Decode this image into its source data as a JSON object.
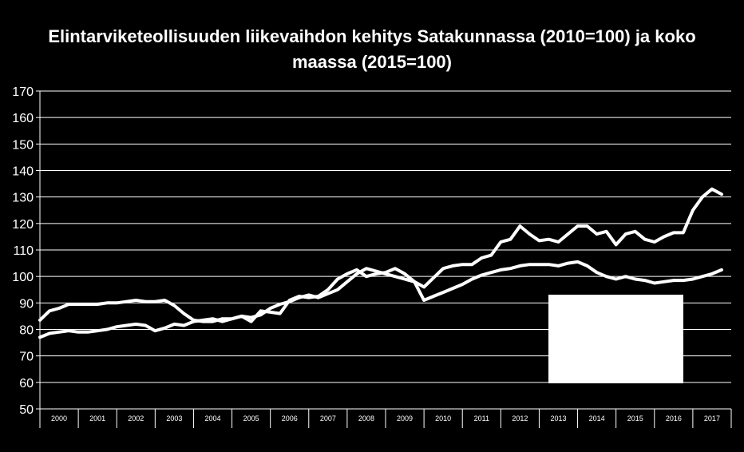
{
  "chart_data": {
    "type": "line",
    "title_lines": [
      "Elintarviketeollisuuden liikevaihdon kehitys Satakunnassa (2010=100) ja koko",
      "maassa (2015=100)"
    ],
    "xlabel": "",
    "ylabel": "",
    "ylim": [
      50,
      170
    ],
    "yticks": [
      50,
      60,
      70,
      80,
      90,
      100,
      110,
      120,
      130,
      140,
      150,
      160,
      170
    ],
    "xlim": [
      2000,
      2018
    ],
    "x_tick_labels": [
      "2000",
      "2001",
      "2002",
      "2003",
      "2004",
      "2005",
      "2006",
      "2007",
      "2008",
      "2009",
      "2010",
      "2011",
      "2012",
      "2013",
      "2014",
      "2015",
      "2016",
      "2017"
    ],
    "grid": "horizontal",
    "line_color": "#ffffff",
    "series": [
      {
        "x": [
          2000.0,
          2000.25,
          2000.5,
          2000.75,
          2001.0,
          2001.25,
          2001.5,
          2001.75,
          2002.0,
          2002.25,
          2002.5,
          2002.75,
          2003.0,
          2003.25,
          2003.5,
          2003.75,
          2004.0,
          2004.25,
          2004.5,
          2004.75,
          2005.0,
          2005.25,
          2005.5,
          2005.75,
          2006.0,
          2006.25,
          2006.5,
          2006.75,
          2007.0,
          2007.25,
          2007.5,
          2007.75,
          2008.0,
          2008.25,
          2008.5,
          2008.75,
          2009.0,
          2009.25,
          2009.5,
          2009.75,
          2010.0,
          2010.25,
          2010.5,
          2010.75,
          2011.0,
          2011.25,
          2011.5,
          2011.75,
          2012.0,
          2012.25,
          2012.5,
          2012.75,
          2013.0,
          2013.25,
          2013.5,
          2013.75,
          2014.0,
          2014.25,
          2014.5,
          2014.75,
          2015.0,
          2015.25,
          2015.5,
          2015.75,
          2016.0,
          2016.25,
          2016.5,
          2016.75,
          2017.0,
          2017.25,
          2017.5,
          2017.75
        ],
        "values": [
          77,
          78.5,
          79,
          79.5,
          79,
          79,
          79.5,
          80,
          81,
          81.5,
          82,
          81.5,
          79.5,
          80.5,
          82,
          81.5,
          83,
          83.5,
          84,
          83,
          84,
          85,
          84.5,
          85.5,
          88,
          89.5,
          90.5,
          92,
          93,
          92,
          93.5,
          95,
          98,
          101,
          103,
          102,
          101,
          100,
          99,
          98,
          91,
          92.5,
          94,
          95.5,
          97,
          99,
          100.5,
          101.5,
          102.5,
          103,
          104,
          104.5,
          104.5,
          104.5,
          104,
          105,
          105.5,
          104,
          101.5,
          100,
          99,
          100,
          99,
          98.5,
          97.5,
          98,
          98.5,
          98.5,
          99,
          100,
          101,
          102.5
        ]
      },
      {
        "x": [
          2000.0,
          2000.25,
          2000.5,
          2000.75,
          2001.0,
          2001.25,
          2001.5,
          2001.75,
          2002.0,
          2002.25,
          2002.5,
          2002.75,
          2003.0,
          2003.25,
          2003.5,
          2003.75,
          2004.0,
          2004.25,
          2004.5,
          2004.75,
          2005.0,
          2005.25,
          2005.5,
          2005.75,
          2006.0,
          2006.25,
          2006.5,
          2006.75,
          2007.0,
          2007.25,
          2007.5,
          2007.75,
          2008.0,
          2008.25,
          2008.5,
          2008.75,
          2009.0,
          2009.25,
          2009.5,
          2009.75,
          2010.0,
          2010.25,
          2010.5,
          2010.75,
          2011.0,
          2011.25,
          2011.5,
          2011.75,
          2012.0,
          2012.25,
          2012.5,
          2012.75,
          2013.0,
          2013.25,
          2013.5,
          2013.75,
          2014.0,
          2014.25,
          2014.5,
          2014.75,
          2015.0,
          2015.25,
          2015.5,
          2015.75,
          2016.0,
          2016.25,
          2016.5,
          2016.75,
          2017.0,
          2017.25,
          2017.5,
          2017.75
        ],
        "values": [
          83.5,
          87,
          88,
          89.5,
          89.5,
          89.5,
          89.5,
          90,
          90,
          90.5,
          91,
          90.5,
          90.5,
          91,
          89,
          86,
          83.5,
          83,
          83,
          84,
          84,
          85,
          83,
          87,
          86.5,
          86,
          91,
          92.5,
          92,
          92.5,
          95,
          99,
          101,
          102.5,
          100,
          101,
          101.5,
          103,
          101,
          98,
          96,
          99.5,
          103,
          104,
          104.5,
          104.5,
          107,
          108,
          113,
          114,
          119,
          116,
          113.5,
          114,
          113,
          116,
          119,
          119,
          116,
          117,
          112,
          116,
          117,
          114,
          113,
          115,
          116.5,
          116.5,
          125,
          130,
          133,
          131
        ]
      }
    ],
    "overlay_box": {
      "color": "#ffffff"
    }
  }
}
